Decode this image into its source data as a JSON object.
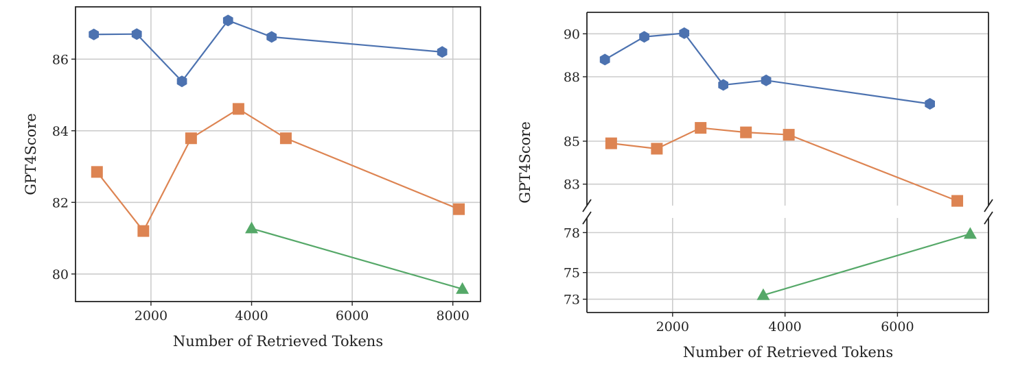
{
  "chart_data": [
    {
      "type": "line",
      "xlabel": "Number of Retrieved Tokens",
      "ylabel": "GPT4Score",
      "xlim": [
        500,
        8550
      ],
      "ylim": [
        79.23,
        87.46
      ],
      "xticks": [
        2000,
        4000,
        6000,
        8000
      ],
      "yticks": [
        80,
        82,
        84,
        86
      ],
      "grid": true,
      "series": [
        {
          "color": "#4c72b0",
          "marker": "hexagon",
          "x": [
            864,
            1717,
            2615,
            3532,
            4398,
            7788
          ],
          "y": [
            86.69,
            86.7,
            85.38,
            87.08,
            86.62,
            86.2
          ]
        },
        {
          "color": "#dd8452",
          "marker": "square",
          "x": [
            927,
            1849,
            2797,
            3739,
            4681,
            8121
          ],
          "y": [
            82.85,
            81.2,
            83.79,
            84.61,
            83.79,
            81.81
          ]
        },
        {
          "color": "#55a868",
          "marker": "triangle",
          "x": [
            4000,
            8190
          ],
          "y": [
            81.27,
            79.58
          ]
        }
      ]
    },
    {
      "type": "line",
      "xlabel": "Number of Retrieved Tokens",
      "ylabel": "GPT4Score",
      "xlim": [
        476,
        7619
      ],
      "xticks": [
        2000,
        4000,
        6000
      ],
      "broken_y_axis": true,
      "panels": [
        {
          "ylim": [
            82.0,
            91.0
          ],
          "yticks": [
            83,
            85,
            88,
            90
          ]
        },
        {
          "ylim": [
            72.0,
            79.1
          ],
          "yticks": [
            73,
            75,
            78
          ]
        }
      ],
      "grid": true,
      "series": [
        {
          "color": "#4c72b0",
          "marker": "hexagon",
          "x": [
            796,
            1496,
            2207,
            2902,
            3664,
            6577
          ],
          "y": [
            88.8,
            89.86,
            90.03,
            87.62,
            87.83,
            86.74
          ]
        },
        {
          "color": "#dd8452",
          "marker": "square",
          "x": [
            908,
            1720,
            2499,
            3305,
            4067,
            7064
          ],
          "y": [
            84.9,
            84.65,
            85.62,
            85.41,
            85.3,
            82.22
          ]
        },
        {
          "color": "#55a868",
          "marker": "triangle",
          "x": [
            3613,
            7294
          ],
          "y": [
            73.3,
            77.9
          ]
        }
      ]
    }
  ]
}
